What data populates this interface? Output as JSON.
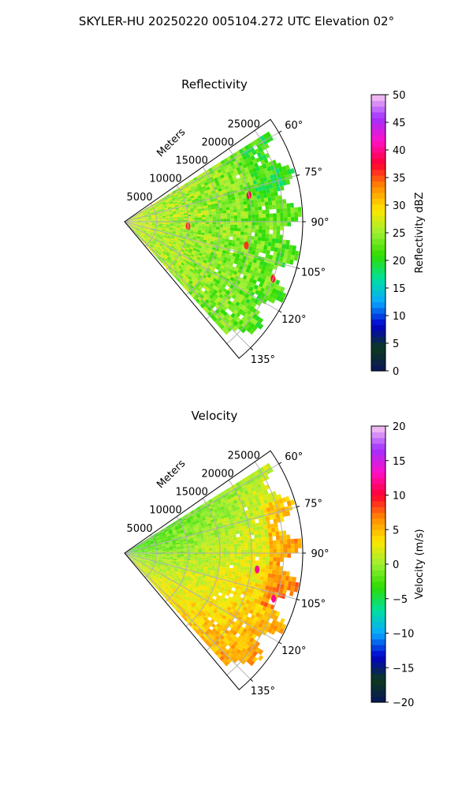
{
  "figure": {
    "title": "SKYLER-HU  20250220  005104.272 UTC Elevation 02°"
  },
  "chart_data": [
    {
      "type": "heatmap",
      "projection": "polar-sector",
      "title": "Reflectivity",
      "theta_range_deg": [
        55,
        140
      ],
      "theta_ticks": [
        "60°",
        "75°",
        "90°",
        "105°",
        "120°",
        "135°"
      ],
      "radial_label": "Meters",
      "radial_max": 28000,
      "radial_ticks": [
        "5000",
        "10000",
        "15000",
        "20000",
        "25000"
      ],
      "colorbar": {
        "label": "Reflectivity dBZ",
        "range": [
          0,
          50
        ],
        "ticks": [
          "0",
          "5",
          "10",
          "15",
          "20",
          "25",
          "30",
          "35",
          "40",
          "45",
          "50"
        ],
        "colors": [
          "#06155a",
          "#0d3a1c",
          "#0000cc",
          "#0aa8ff",
          "#00e0a0",
          "#2ddc00",
          "#9cef32",
          "#ffe600",
          "#ff8c00",
          "#ff0030",
          "#ff10c8",
          "#a030ff",
          "#f8c8f0"
        ]
      },
      "field_summary": {
        "dominant_values": [
          20,
          25
        ],
        "near_range_value": 27,
        "far_range_value": 22,
        "hotspots": [
          {
            "theta_deg": 78,
            "range_m": 20000,
            "value": 38
          },
          {
            "theta_deg": 101,
            "range_m": 19500,
            "value": 36
          },
          {
            "theta_deg": 111,
            "range_m": 25000,
            "value": 37
          },
          {
            "theta_deg": 94,
            "range_m": 10000,
            "value": 36
          }
        ]
      }
    },
    {
      "type": "heatmap",
      "projection": "polar-sector",
      "title": "Velocity",
      "theta_range_deg": [
        55,
        140
      ],
      "theta_ticks": [
        "60°",
        "75°",
        "90°",
        "105°",
        "120°",
        "135°"
      ],
      "radial_label": "Meters",
      "radial_max": 28000,
      "radial_ticks": [
        "5000",
        "10000",
        "15000",
        "20000",
        "25000"
      ],
      "colorbar": {
        "label": "Velocity (m/s)",
        "range": [
          -20,
          20
        ],
        "ticks": [
          "−20",
          "−15",
          "−10",
          "−5",
          "0",
          "5",
          "10",
          "15",
          "20"
        ],
        "colors": [
          "#06155a",
          "#0d3a1c",
          "#0000cc",
          "#0aa8ff",
          "#00e0a0",
          "#2ddc00",
          "#9cef32",
          "#ffe600",
          "#ff8c00",
          "#ff0030",
          "#ff10c8",
          "#a030ff",
          "#f8c8f0"
        ]
      },
      "field_summary": {
        "upper_near_value": -4,
        "middle_value": 1,
        "lower_far_value": 6,
        "hotspots": [
          {
            "theta_deg": 97,
            "range_m": 21000,
            "value": 12
          },
          {
            "theta_deg": 107,
            "range_m": 24500,
            "value": 12
          }
        ]
      }
    }
  ]
}
